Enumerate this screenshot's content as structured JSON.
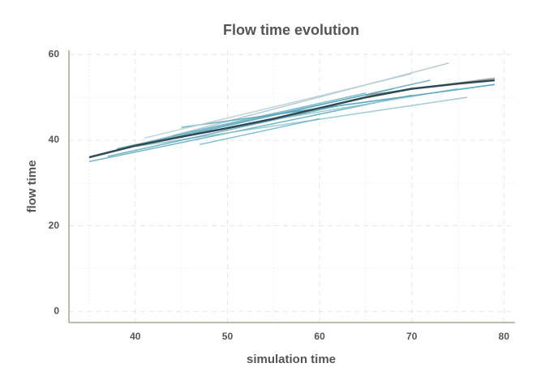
{
  "chart_data": {
    "type": "line",
    "title": "Flow time evolution",
    "x_label": "simulation time",
    "y_label": "flow time",
    "xlim": [
      32.8,
      81.2
    ],
    "ylim": [
      -2.6,
      61
    ],
    "xticks": [
      40,
      50,
      60,
      70,
      80
    ],
    "yticks": [
      0,
      20,
      40,
      60
    ],
    "grid": true,
    "series": [
      {
        "color": "#5aa7bd",
        "x": [
          35,
          70
        ],
        "values": [
          35,
          50.5
        ]
      },
      {
        "color": "#a9c3cc",
        "x": [
          36,
          74
        ],
        "values": [
          36.5,
          58
        ]
      },
      {
        "color": "#5aa7bd",
        "x": [
          38,
          68
        ],
        "values": [
          38,
          52
        ]
      },
      {
        "color": "#8ec2d0",
        "x": [
          40,
          76
        ],
        "values": [
          38.5,
          50
        ]
      },
      {
        "color": "#5aa7bd",
        "x": [
          42,
          72
        ],
        "values": [
          39.5,
          54
        ]
      },
      {
        "color": "#6fb3c6",
        "x": [
          44,
          65
        ],
        "values": [
          41,
          51
        ]
      },
      {
        "color": "#5aa7bd",
        "x": [
          45,
          79
        ],
        "values": [
          43,
          53
        ]
      },
      {
        "color": "#6fb3c6",
        "x": [
          47,
          60
        ],
        "values": [
          39,
          45
        ]
      },
      {
        "color": "#5aa7bd",
        "x": [
          37,
          62
        ],
        "values": [
          36.2,
          48
        ]
      },
      {
        "color": "#8ec2d0",
        "x": [
          50,
          75
        ],
        "values": [
          43,
          52
        ]
      },
      {
        "color": "#b5cdd5",
        "x": [
          41,
          70
        ],
        "values": [
          40.5,
          55.5
        ]
      },
      {
        "color": "#5aa7bd",
        "x": [
          55,
          79
        ],
        "values": [
          46,
          53
        ]
      },
      {
        "color": "#8a8f92",
        "x": [
          65,
          79
        ],
        "values": [
          50.5,
          54.5
        ]
      },
      {
        "color": "#2f4a52",
        "x": [
          35,
          40,
          45,
          50,
          55,
          60,
          65,
          70,
          75,
          79
        ],
        "values": [
          36,
          38.7,
          40.8,
          42.8,
          45,
          47.5,
          50,
          52,
          53.2,
          54
        ]
      }
    ]
  }
}
